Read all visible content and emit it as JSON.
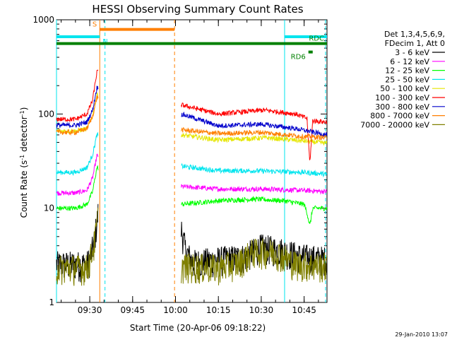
{
  "chart_data": {
    "type": "line",
    "title": "HESSI Observing Summary Count Rates",
    "xlabel": "Start Time (20-Apr-06 09:18:22)",
    "ylabel": "Count Rate (s⁻¹ detector⁻¹)",
    "ylabel_parts": {
      "base": "Count Rate (s",
      "sup1": "-1",
      "mid": " detector",
      "sup2": "-1",
      "end": ")"
    },
    "yscale": "log",
    "ylim": [
      1,
      1000
    ],
    "xlim": [
      "09:18:22",
      "10:53:00"
    ],
    "x_unit": "clock time HH:MM on 20-Apr-06",
    "xticks": [
      "09:30",
      "09:45",
      "10:00",
      "10:15",
      "10:30",
      "10:45"
    ],
    "yticks": [
      "1",
      "10",
      "100",
      "1000"
    ],
    "grid": false,
    "legend_position": "right",
    "legend_header": [
      "Det 1,3,4,5,6,9,",
      "FDecim 1, Att 0"
    ],
    "date_stamp": "29-Jan-2010 13:07",
    "data_gap": [
      "09:33",
      "10:02"
    ],
    "vertical_markers": [
      {
        "time": "09:18:22",
        "color": "#00e5ee",
        "style": "solid"
      },
      {
        "time": "09:33:30",
        "color": "#ff7f00",
        "style": "solid"
      },
      {
        "time": "09:35:20",
        "color": "#00e5ee",
        "style": "dashed"
      },
      {
        "time": "09:59:40",
        "color": "#ff7f00",
        "style": "dashed"
      },
      {
        "time": "10:38:10",
        "color": "#00e5ee",
        "style": "solid"
      },
      {
        "time": "10:52:30",
        "color": "#00e5ee",
        "style": "dashed"
      }
    ],
    "flag_bars": [
      {
        "label": "S",
        "color": "#ff7f00",
        "y": 790,
        "segments": [
          [
            "09:33:30",
            "09:59:40"
          ]
        ],
        "label_side": "left",
        "label_time": "09:33:30"
      },
      {
        "label": "N",
        "color": "#00e5ee",
        "y": 660,
        "segments": [
          [
            "09:18:22",
            "09:33:30"
          ],
          [
            "10:38:10",
            "10:53:00"
          ]
        ],
        "label_side": "right",
        "label_time": "09:33:30"
      },
      {
        "label": "RDC",
        "color": "#008000",
        "y": 560,
        "segments": [
          [
            "09:18:22",
            "10:53:00"
          ]
        ],
        "label_side": "left",
        "label_time": "10:53:00"
      },
      {
        "label": "RD6",
        "color": "#008000",
        "y": 455,
        "segments": [
          [
            "10:46:30",
            "10:48:00"
          ]
        ],
        "label_side": "left",
        "label_time": "10:46:30"
      }
    ],
    "series": [
      {
        "name": "3 - 6 keV",
        "color": "#000000",
        "points": [
          [
            "09:18:22",
            2.5
          ],
          [
            "09:29:00",
            2.5
          ],
          [
            "09:30:00",
            2.8
          ],
          [
            "09:31:30",
            4.2
          ],
          [
            "09:33:00",
            9
          ],
          [
            "10:02:00",
            6
          ],
          [
            "10:03:30",
            3.5
          ],
          [
            "10:06:00",
            2.6
          ],
          [
            "10:24:00",
            3.0
          ],
          [
            "10:30:00",
            3.8
          ],
          [
            "10:37:00",
            3.5
          ],
          [
            "10:44:00",
            3.0
          ],
          [
            "10:53:00",
            2.8
          ]
        ]
      },
      {
        "name": "6 - 12 keV",
        "color": "#ff00ff",
        "points": [
          [
            "09:18:22",
            14.5
          ],
          [
            "09:25:00",
            14.5
          ],
          [
            "09:29:00",
            15.5
          ],
          [
            "09:31:00",
            21
          ],
          [
            "09:32:30",
            36
          ],
          [
            "10:02:00",
            17
          ],
          [
            "10:15:00",
            16
          ],
          [
            "10:30:00",
            16
          ],
          [
            "10:44:00",
            15.5
          ],
          [
            "10:53:00",
            15
          ]
        ]
      },
      {
        "name": "12 - 25 keV",
        "color": "#00ff00",
        "points": [
          [
            "09:18:22",
            10
          ],
          [
            "09:25:00",
            10
          ],
          [
            "09:29:00",
            11
          ],
          [
            "09:31:00",
            15
          ],
          [
            "09:32:30",
            27
          ],
          [
            "10:02:00",
            11
          ],
          [
            "10:15:00",
            12
          ],
          [
            "10:28:00",
            12.5
          ],
          [
            "10:38:00",
            12
          ],
          [
            "10:45:00",
            11
          ],
          [
            "10:46:00",
            9
          ],
          [
            "10:47:00",
            6.5
          ],
          [
            "10:48:00",
            10
          ],
          [
            "10:53:00",
            10
          ]
        ]
      },
      {
        "name": "25 - 50 keV",
        "color": "#00e5ee",
        "points": [
          [
            "09:18:22",
            24
          ],
          [
            "09:25:00",
            24
          ],
          [
            "09:29:00",
            27
          ],
          [
            "09:31:00",
            37
          ],
          [
            "09:32:30",
            60
          ],
          [
            "10:02:00",
            28
          ],
          [
            "10:15:00",
            25
          ],
          [
            "10:28:00",
            25
          ],
          [
            "10:45:00",
            24
          ],
          [
            "10:53:00",
            23
          ]
        ]
      },
      {
        "name": "50 - 100 keV",
        "color": "#e6e600",
        "points": [
          [
            "09:18:22",
            66
          ],
          [
            "09:25:00",
            66
          ],
          [
            "09:29:00",
            70
          ],
          [
            "09:31:00",
            95
          ],
          [
            "09:32:30",
            160
          ],
          [
            "10:02:00",
            60
          ],
          [
            "10:15:00",
            53
          ],
          [
            "10:32:00",
            56
          ],
          [
            "10:44:00",
            52
          ],
          [
            "10:53:00",
            49
          ]
        ]
      },
      {
        "name": "100 - 300 keV",
        "color": "#ff0000",
        "points": [
          [
            "09:18:22",
            88
          ],
          [
            "09:25:00",
            88
          ],
          [
            "09:29:00",
            100
          ],
          [
            "09:31:00",
            140
          ],
          [
            "09:32:30",
            280
          ],
          [
            "10:02:00",
            125
          ],
          [
            "10:15:00",
            100
          ],
          [
            "10:31:00",
            110
          ],
          [
            "10:42:00",
            100
          ],
          [
            "10:46:00",
            90
          ],
          [
            "10:47:00",
            30
          ],
          [
            "10:48:00",
            85
          ],
          [
            "10:53:00",
            82
          ]
        ]
      },
      {
        "name": "300 - 800 keV",
        "color": "#0000cc",
        "points": [
          [
            "09:18:22",
            76
          ],
          [
            "09:25:00",
            76
          ],
          [
            "09:29:00",
            82
          ],
          [
            "09:31:00",
            110
          ],
          [
            "09:32:30",
            190
          ],
          [
            "10:02:00",
            100
          ],
          [
            "10:15:00",
            75
          ],
          [
            "10:30:00",
            78
          ],
          [
            "10:42:00",
            70
          ],
          [
            "10:53:00",
            60
          ]
        ]
      },
      {
        "name": "800 - 7000 keV",
        "color": "#ff7f00",
        "points": [
          [
            "09:18:22",
            64
          ],
          [
            "09:25:00",
            64
          ],
          [
            "09:29:00",
            70
          ],
          [
            "09:31:00",
            95
          ],
          [
            "09:32:30",
            150
          ],
          [
            "10:02:00",
            68
          ],
          [
            "10:15:00",
            62
          ],
          [
            "10:30:00",
            64
          ],
          [
            "10:44:00",
            58
          ],
          [
            "10:53:00",
            56
          ]
        ]
      },
      {
        "name": "7000 - 20000 keV",
        "color": "#808000",
        "points": [
          [
            "09:18:22",
            2.3
          ],
          [
            "09:29:00",
            2.3
          ],
          [
            "09:30:00",
            2.8
          ],
          [
            "09:31:30",
            4
          ],
          [
            "09:33:00",
            8
          ],
          [
            "10:02:00",
            2.4
          ],
          [
            "10:15:00",
            2.3
          ],
          [
            "10:22:00",
            2.6
          ],
          [
            "10:27:00",
            3.4
          ],
          [
            "10:35:00",
            3.4
          ],
          [
            "10:42:00",
            2.5
          ],
          [
            "10:53:00",
            2.4
          ]
        ]
      }
    ]
  }
}
